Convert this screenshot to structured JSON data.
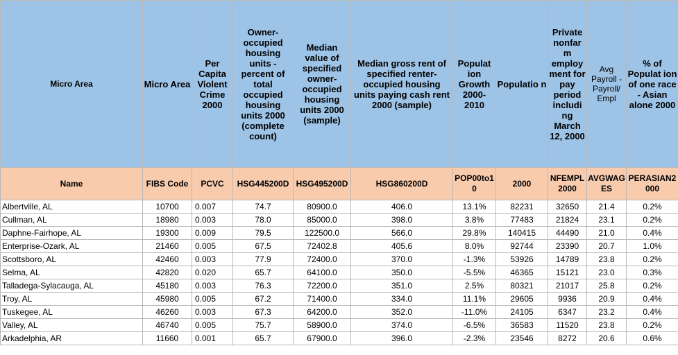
{
  "header_top": [
    "Micro Area",
    "Micro Area",
    "Per Capita Violent Crime 2000",
    "Owner-occupied housing units - percent of total occupied housing units 2000 (complete count)",
    "Median value of specified owner-occupied housing units 2000 (sample)",
    "Median gross rent of specified renter-occupied housing units paying cash rent 2000 (sample)",
    "Populat ion Growth 2000-2010",
    "Populatio n",
    "Private nonfar m employ ment for pay period includi ng March 12, 2000",
    "Avg Payroll - Payroll/ Empl",
    "% of Populat ion of one race - Asian alone 2000"
  ],
  "header_codes": [
    "Name",
    "FIBS Code",
    "PCVC",
    "HSG445200D",
    "HSG495200D",
    "HSG860200D",
    "POP00to10",
    "2000",
    "NFEMPL2000",
    "AVGWAGES",
    "PERASIAN2000"
  ],
  "rows": [
    [
      "Albertville, AL",
      "10700",
      "0.007",
      "74.7",
      "80900.0",
      "406.0",
      "13.1%",
      "82231",
      "32650",
      "21.4",
      "0.2%"
    ],
    [
      "Cullman, AL",
      "18980",
      "0.003",
      "78.0",
      "85000.0",
      "398.0",
      "3.8%",
      "77483",
      "21824",
      "23.1",
      "0.2%"
    ],
    [
      "Daphne-Fairhope, AL",
      "19300",
      "0.009",
      "79.5",
      "122500.0",
      "566.0",
      "29.8%",
      "140415",
      "44490",
      "21.0",
      "0.4%"
    ],
    [
      "Enterprise-Ozark, AL",
      "21460",
      "0.005",
      "67.5",
      "72402.8",
      "405.6",
      "8.0%",
      "92744",
      "23390",
      "20.7",
      "1.0%"
    ],
    [
      "Scottsboro, AL",
      "42460",
      "0.003",
      "77.9",
      "72400.0",
      "370.0",
      "-1.3%",
      "53926",
      "14789",
      "23.8",
      "0.2%"
    ],
    [
      "Selma, AL",
      "42820",
      "0.020",
      "65.7",
      "64100.0",
      "350.0",
      "-5.5%",
      "46365",
      "15121",
      "23.0",
      "0.3%"
    ],
    [
      "Talladega-Sylacauga, AL",
      "45180",
      "0.003",
      "76.3",
      "72200.0",
      "351.0",
      "2.5%",
      "80321",
      "21017",
      "25.8",
      "0.2%"
    ],
    [
      "Troy, AL",
      "45980",
      "0.005",
      "67.2",
      "71400.0",
      "334.0",
      "11.1%",
      "29605",
      "9936",
      "20.9",
      "0.4%"
    ],
    [
      "Tuskegee, AL",
      "46260",
      "0.003",
      "67.3",
      "64200.0",
      "352.0",
      "-11.0%",
      "24105",
      "6347",
      "23.2",
      "0.4%"
    ],
    [
      "Valley, AL",
      "46740",
      "0.005",
      "75.7",
      "58900.0",
      "374.0",
      "-6.5%",
      "36583",
      "11520",
      "23.8",
      "0.2%"
    ],
    [
      "Arkadelphia, AR",
      "11660",
      "0.001",
      "65.7",
      "67900.0",
      "396.0",
      "-2.3%",
      "23546",
      "8272",
      "20.6",
      "0.6%"
    ]
  ]
}
